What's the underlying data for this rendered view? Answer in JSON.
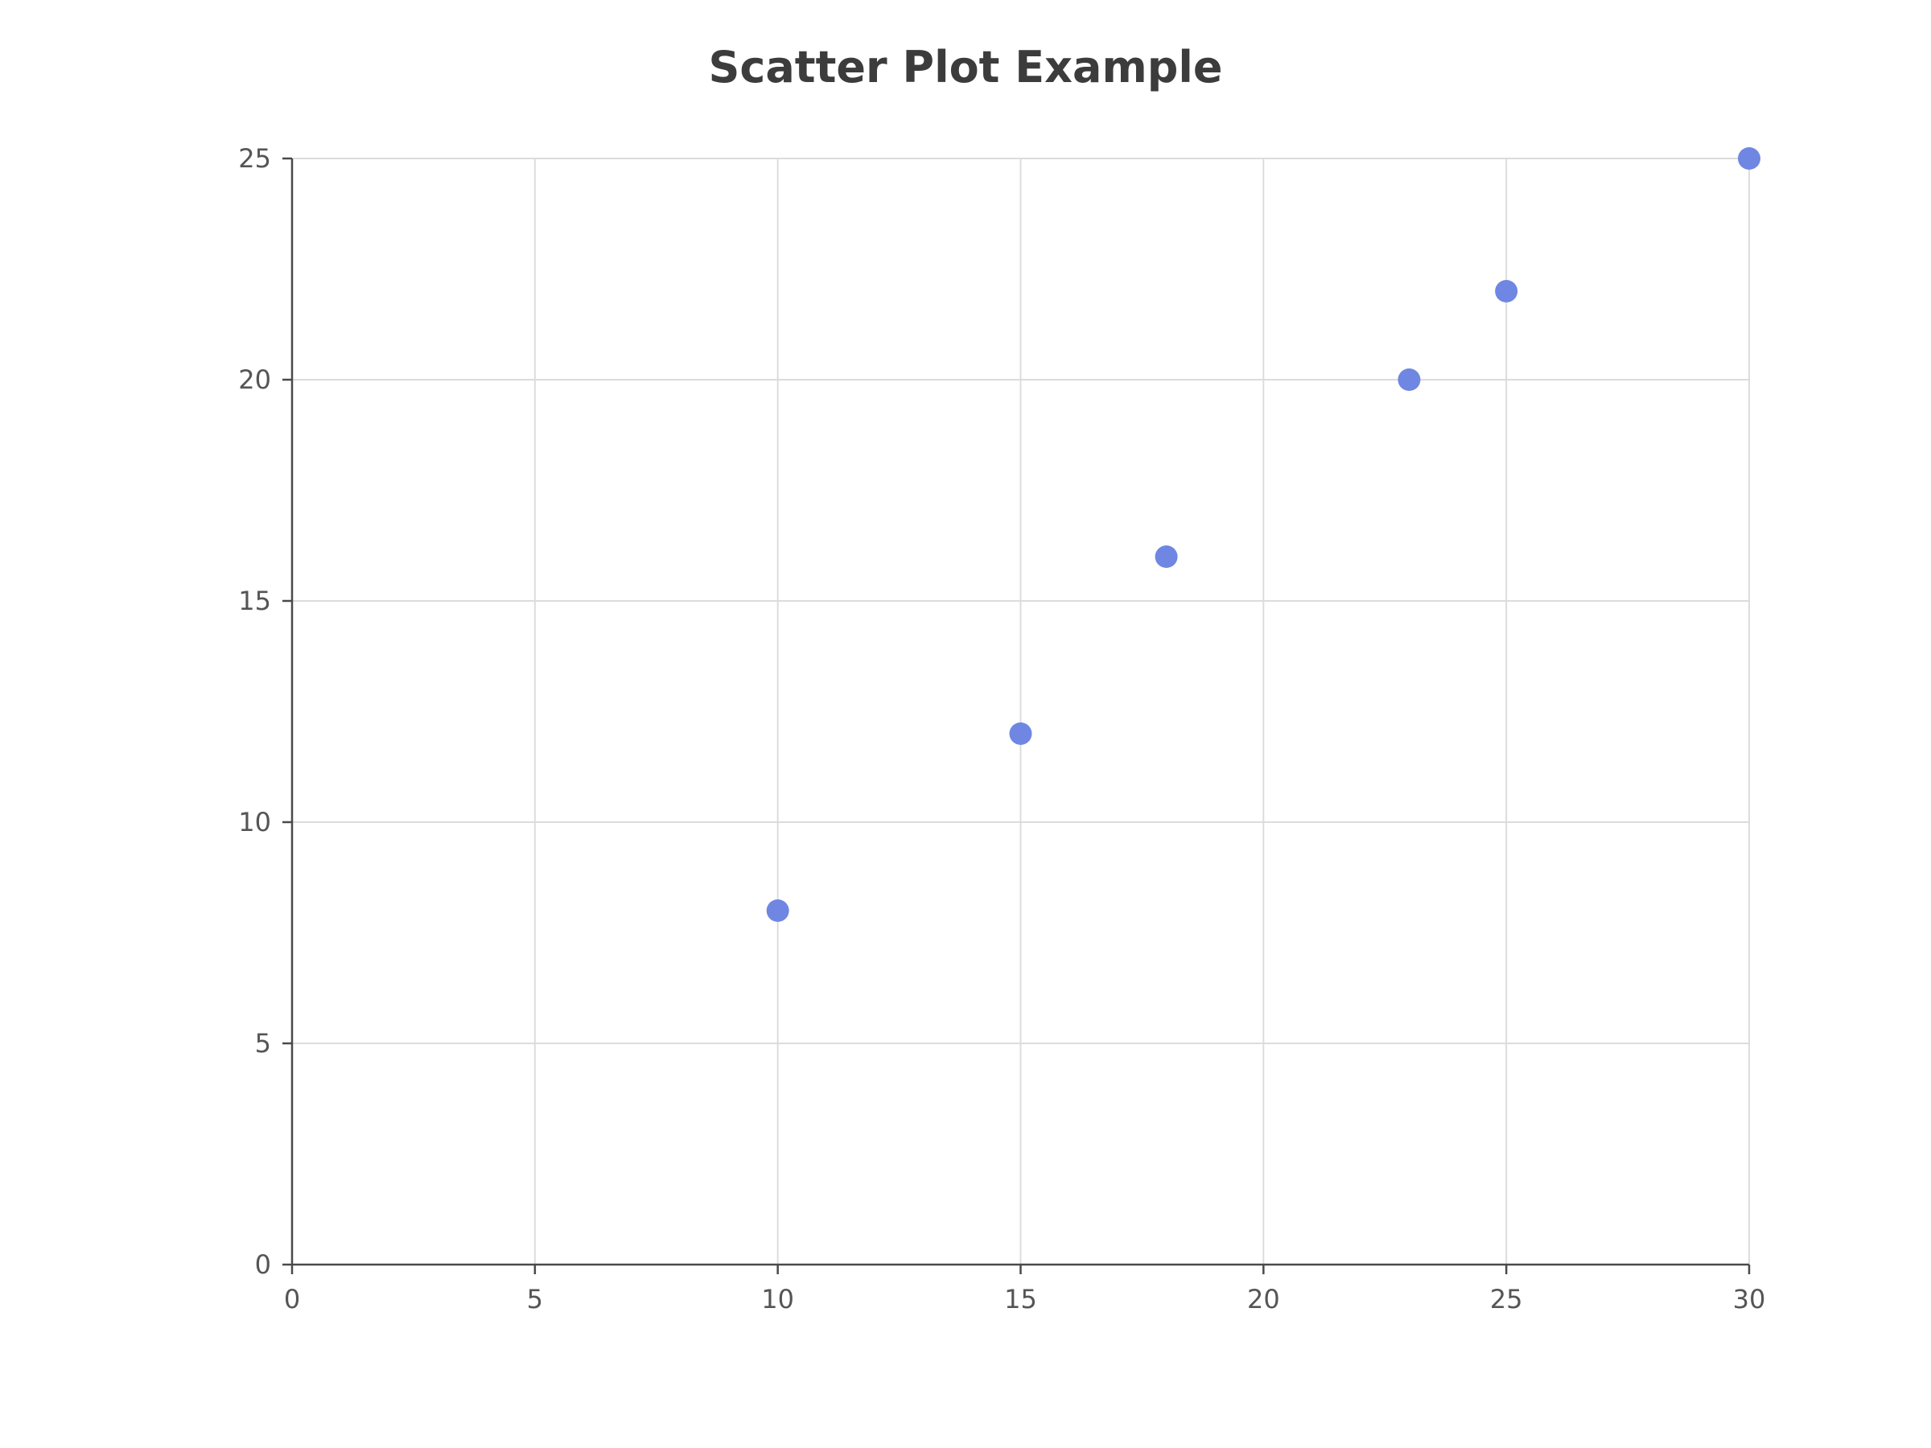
{
  "chart_data": {
    "type": "scatter",
    "title": "Scatter Plot Example",
    "xlabel": "",
    "ylabel": "",
    "xlim": [
      0,
      30
    ],
    "ylim": [
      0,
      25
    ],
    "x_ticks": [
      0,
      5,
      10,
      15,
      20,
      25,
      30
    ],
    "y_ticks": [
      0,
      5,
      10,
      15,
      20,
      25
    ],
    "grid": true,
    "series": [
      {
        "points": [
          {
            "x": 10,
            "y": 8
          },
          {
            "x": 15,
            "y": 12
          },
          {
            "x": 18,
            "y": 16
          },
          {
            "x": 23,
            "y": 20
          },
          {
            "x": 25,
            "y": 22
          },
          {
            "x": 30,
            "y": 25
          }
        ],
        "color": "#6f87e2"
      }
    ],
    "colors": {
      "grid": "#dcdcdc",
      "axis": "#4a4a4a",
      "text": "#555555",
      "title": "#3c3c3c"
    }
  }
}
